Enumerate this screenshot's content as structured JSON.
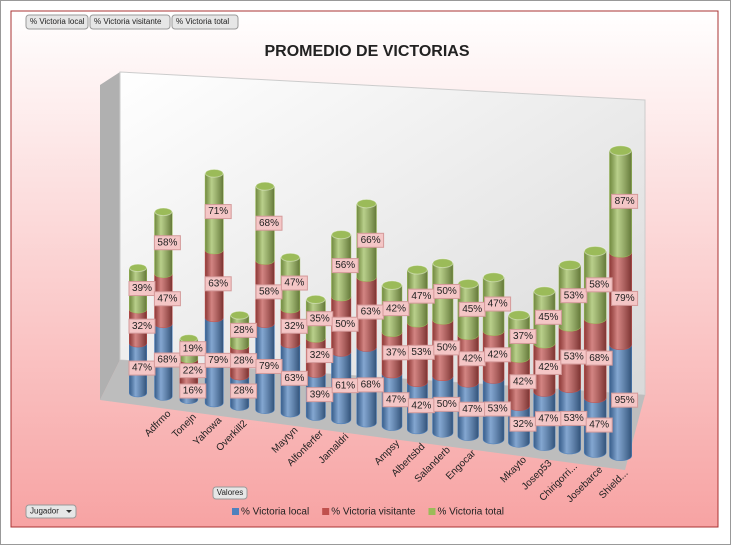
{
  "controls": {
    "series_buttons": [
      "% Victoria local",
      "% Victoria visitante",
      "% Victoria total"
    ],
    "values_button": "Valores",
    "axis_field": "Jugador"
  },
  "chart_data": {
    "type": "stacked-cylinder",
    "title": "PROMEDIO DE VICTORIAS",
    "categories": [
      null,
      "Adfrmo",
      "Tonejn",
      "Yahowa",
      "Overkill2",
      null,
      "Maytyn",
      "Alfonferfer",
      "Jamaldri",
      null,
      "Ampsy",
      "Albertsbd",
      "Salanderb",
      "Engocar",
      null,
      "Mkayto",
      "Josep53",
      "Chirigorri...",
      "Josebarce",
      "Shield..."
    ],
    "ylim": [
      0,
      280
    ],
    "legend": "bottom",
    "series": [
      {
        "name": "% Victoria local",
        "color": "#4f81bd",
        "values": [
          47,
          68,
          16,
          79,
          28,
          79,
          63,
          39,
          61,
          68,
          47,
          42,
          50,
          47,
          53,
          32,
          47,
          53,
          47,
          95
        ],
        "value_labels": [
          "47%",
          "68%",
          "16%",
          "79%",
          "28%",
          "79%",
          "63%",
          "39%",
          "61%",
          "68%",
          "47%",
          "42%",
          "50%",
          "47%",
          "53%",
          "32%",
          "47%",
          "53%",
          "47%",
          "95%"
        ]
      },
      {
        "name": "% Victoria visitante",
        "color": "#c0504d",
        "values": [
          32,
          47,
          22,
          63,
          28,
          58,
          32,
          32,
          50,
          63,
          37,
          53,
          50,
          42,
          42,
          42,
          42,
          53,
          68,
          79
        ],
        "value_labels": [
          "32%",
          "47%",
          "22%",
          "63%",
          "28%",
          "58%",
          "32%",
          "32%",
          "50%",
          "63%",
          "37%",
          "53%",
          "50%",
          "42%",
          "42%",
          "42%",
          "42%",
          "53%",
          "68%",
          "79%"
        ]
      },
      {
        "name": "% Victoria total",
        "color": "#9bbb59",
        "values": [
          39,
          58,
          19,
          71,
          28,
          68,
          47,
          35,
          56,
          66,
          42,
          47,
          50,
          45,
          47,
          37,
          45,
          53,
          58,
          87
        ],
        "value_labels": [
          "39%",
          "58%",
          "19%",
          "71%",
          "28%",
          "68%",
          "47%",
          "35%",
          "56%",
          "66%",
          "42%",
          "47%",
          "50%",
          "45%",
          "47%",
          "37%",
          "45%",
          "53%",
          "58%",
          "87%"
        ]
      }
    ]
  }
}
